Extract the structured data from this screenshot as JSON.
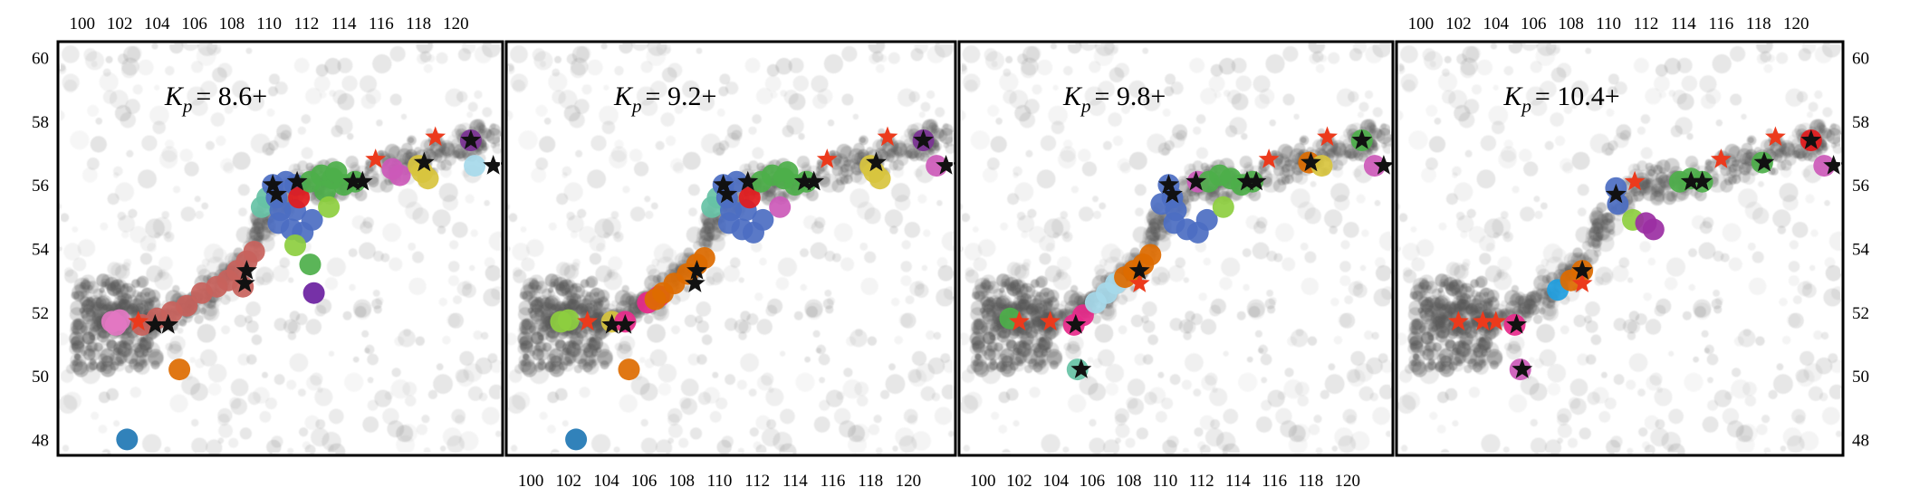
{
  "chart_data": {
    "type": "scatter",
    "x_ticks": [
      100,
      102,
      104,
      106,
      108,
      110,
      112,
      114,
      116,
      118,
      120
    ],
    "y_ticks": [
      48,
      50,
      52,
      54,
      56,
      58,
      60
    ],
    "xlim": [
      98.7,
      122.5
    ],
    "ylim": [
      47.5,
      60.5
    ],
    "panels": [
      {
        "label_symbol": "K",
        "label_sub": "p",
        "label_value": "= 8.6+",
        "clusters": [
          {
            "color": "#e377c2",
            "points": [
              [
                101.6,
                51.7
              ],
              [
                102.0,
                51.75
              ],
              [
                101.8,
                51.6
              ]
            ]
          },
          {
            "color": "#c8625c",
            "points": [
              [
                103.2,
                51.6
              ],
              [
                104.0,
                51.8
              ],
              [
                104.8,
                52.0
              ],
              [
                105.6,
                52.2
              ],
              [
                106.4,
                52.6
              ],
              [
                107.2,
                52.8
              ],
              [
                107.8,
                53.0
              ],
              [
                108.3,
                53.3
              ],
              [
                108.8,
                53.6
              ],
              [
                109.2,
                53.9
              ],
              [
                108.6,
                52.8
              ]
            ]
          },
          {
            "color": "#dd6b00",
            "points": [
              [
                105.2,
                50.2
              ]
            ]
          },
          {
            "color": "#1f77b4",
            "points": [
              [
                102.4,
                48.0
              ]
            ]
          },
          {
            "color": "#66c2a5",
            "points": [
              [
                109.6,
                55.3
              ],
              [
                109.9,
                55.6
              ]
            ]
          },
          {
            "color": "#4c6ec2",
            "points": [
              [
                110.2,
                56.0
              ],
              [
                110.4,
                55.6
              ],
              [
                110.6,
                55.2
              ],
              [
                110.5,
                54.8
              ],
              [
                111.2,
                54.6
              ],
              [
                111.8,
                54.5
              ],
              [
                112.3,
                54.9
              ],
              [
                111.4,
                55.2
              ],
              [
                110.9,
                56.1
              ],
              [
                111.4,
                56.0
              ]
            ]
          },
          {
            "color": "#e31a1c",
            "points": [
              [
                111.6,
                55.6
              ]
            ]
          },
          {
            "color": "#4daf4a",
            "points": [
              [
                112.2,
                56.1
              ],
              [
                112.8,
                56.3
              ],
              [
                113.4,
                56.2
              ],
              [
                114.0,
                56.0
              ],
              [
                114.6,
                56.1
              ],
              [
                113.0,
                55.8
              ],
              [
                113.6,
                56.4
              ],
              [
                112.2,
                53.5
              ]
            ]
          },
          {
            "color": "#8dce3f",
            "points": [
              [
                111.4,
                54.1
              ],
              [
                113.2,
                55.3
              ]
            ]
          },
          {
            "color": "#cc59b9",
            "points": [
              [
                116.6,
                56.5
              ],
              [
                117.0,
                56.3
              ]
            ]
          },
          {
            "color": "#d8c43e",
            "points": [
              [
                118.2,
                56.4
              ],
              [
                118.5,
                56.2
              ],
              [
                118.0,
                56.6
              ]
            ]
          },
          {
            "color": "#a6d9ea",
            "points": [
              [
                121.0,
                56.6
              ]
            ]
          },
          {
            "color": "#7b3294",
            "points": [
              [
                120.8,
                57.4
              ]
            ]
          },
          {
            "color": "#6a1fa0",
            "points": [
              [
                112.4,
                52.6
              ]
            ]
          }
        ],
        "black_stars": [
          [
            103.9,
            51.6
          ],
          [
            104.6,
            51.6
          ],
          [
            108.8,
            53.3
          ],
          [
            108.7,
            52.9
          ],
          [
            110.2,
            56.0
          ],
          [
            110.4,
            55.7
          ],
          [
            111.5,
            56.1
          ],
          [
            114.5,
            56.1
          ],
          [
            115.0,
            56.1
          ],
          [
            118.3,
            56.7
          ],
          [
            120.8,
            57.4
          ],
          [
            122.0,
            56.6
          ]
        ],
        "red_stars": [
          [
            103.0,
            51.7
          ],
          [
            115.7,
            56.8
          ],
          [
            118.9,
            57.5
          ]
        ]
      },
      {
        "label_symbol": "K",
        "label_sub": "p",
        "label_value": "= 9.2+",
        "clusters": [
          {
            "color": "#8dce3f",
            "points": [
              [
                101.6,
                51.7
              ],
              [
                102.0,
                51.75
              ]
            ]
          },
          {
            "color": "#d8c43e",
            "points": [
              [
                104.3,
                51.7
              ]
            ]
          },
          {
            "color": "#e7298a",
            "points": [
              [
                105.0,
                51.7
              ],
              [
                106.2,
                52.3
              ],
              [
                106.8,
                52.5
              ]
            ]
          },
          {
            "color": "#dd6b00",
            "points": [
              [
                105.2,
                50.2
              ],
              [
                107.0,
                52.6
              ],
              [
                107.6,
                52.9
              ],
              [
                108.3,
                53.2
              ],
              [
                108.8,
                53.5
              ],
              [
                109.2,
                53.7
              ],
              [
                106.6,
                52.4
              ]
            ]
          },
          {
            "color": "#1f77b4",
            "points": [
              [
                102.4,
                48.0
              ]
            ]
          },
          {
            "color": "#66c2a5",
            "points": [
              [
                109.6,
                55.3
              ],
              [
                109.9,
                55.6
              ]
            ]
          },
          {
            "color": "#4c6ec2",
            "points": [
              [
                110.2,
                56.0
              ],
              [
                110.4,
                55.6
              ],
              [
                110.6,
                55.2
              ],
              [
                110.5,
                54.8
              ],
              [
                111.2,
                54.6
              ],
              [
                111.8,
                54.5
              ],
              [
                112.3,
                54.9
              ],
              [
                111.4,
                55.2
              ],
              [
                110.9,
                56.1
              ]
            ]
          },
          {
            "color": "#e31a1c",
            "points": [
              [
                111.6,
                55.6
              ]
            ]
          },
          {
            "color": "#4daf4a",
            "points": [
              [
                112.2,
                56.1
              ],
              [
                112.8,
                56.3
              ],
              [
                113.4,
                56.2
              ],
              [
                114.0,
                56.0
              ],
              [
                114.6,
                56.1
              ],
              [
                113.6,
                56.4
              ]
            ]
          },
          {
            "color": "#cc59b9",
            "points": [
              [
                113.2,
                55.3
              ]
            ]
          },
          {
            "color": "#d8c43e",
            "points": [
              [
                118.2,
                56.4
              ],
              [
                118.5,
                56.2
              ],
              [
                118.0,
                56.6
              ]
            ]
          },
          {
            "color": "#cc59b9",
            "points": [
              [
                121.5,
                56.6
              ]
            ]
          },
          {
            "color": "#7b3294",
            "points": [
              [
                120.8,
                57.4
              ]
            ]
          }
        ],
        "black_stars": [
          [
            104.3,
            51.6
          ],
          [
            105.0,
            51.6
          ],
          [
            108.8,
            53.3
          ],
          [
            108.7,
            52.9
          ],
          [
            110.2,
            56.0
          ],
          [
            110.4,
            55.7
          ],
          [
            111.5,
            56.1
          ],
          [
            114.5,
            56.1
          ],
          [
            115.0,
            56.1
          ],
          [
            118.3,
            56.7
          ],
          [
            120.8,
            57.4
          ],
          [
            122.0,
            56.6
          ]
        ],
        "red_stars": [
          [
            103.0,
            51.7
          ],
          [
            115.7,
            56.8
          ],
          [
            118.9,
            57.5
          ]
        ]
      },
      {
        "label_symbol": "K",
        "label_sub": "p",
        "label_value": "= 9.8+",
        "clusters": [
          {
            "color": "#4daf4a",
            "points": [
              [
                101.5,
                51.8
              ]
            ]
          },
          {
            "color": "#e7298a",
            "points": [
              [
                105.0,
                51.6
              ],
              [
                105.5,
                51.9
              ]
            ]
          },
          {
            "color": "#a6d9ea",
            "points": [
              [
                106.2,
                52.3
              ],
              [
                106.8,
                52.6
              ],
              [
                107.3,
                52.9
              ]
            ]
          },
          {
            "color": "#dd6b00",
            "points": [
              [
                107.8,
                53.1
              ],
              [
                108.3,
                53.3
              ],
              [
                108.8,
                53.5
              ],
              [
                109.2,
                53.8
              ]
            ]
          },
          {
            "color": "#66c2a5",
            "points": [
              [
                105.2,
                50.2
              ]
            ]
          },
          {
            "color": "#4c6ec2",
            "points": [
              [
                110.2,
                56.0
              ],
              [
                110.4,
                55.6
              ],
              [
                110.6,
                55.2
              ],
              [
                110.5,
                54.8
              ],
              [
                111.2,
                54.6
              ],
              [
                111.8,
                54.5
              ],
              [
                112.3,
                54.9
              ],
              [
                109.8,
                55.4
              ]
            ]
          },
          {
            "color": "#cc59b9",
            "points": [
              [
                111.8,
                56.1
              ]
            ]
          },
          {
            "color": "#4daf4a",
            "points": [
              [
                112.4,
                56.1
              ],
              [
                113.0,
                56.3
              ],
              [
                113.6,
                56.2
              ],
              [
                114.2,
                56.0
              ],
              [
                114.8,
                56.1
              ]
            ]
          },
          {
            "color": "#8dce3f",
            "points": [
              [
                113.2,
                55.3
              ]
            ]
          },
          {
            "color": "#dd6b00",
            "points": [
              [
                117.9,
                56.7
              ]
            ]
          },
          {
            "color": "#d8c43e",
            "points": [
              [
                118.6,
                56.6
              ]
            ]
          },
          {
            "color": "#4daf4a",
            "points": [
              [
                120.8,
                57.4
              ]
            ]
          },
          {
            "color": "#cc59b9",
            "points": [
              [
                121.5,
                56.6
              ]
            ]
          }
        ],
        "black_stars": [
          [
            105.1,
            51.6
          ],
          [
            108.6,
            53.3
          ],
          [
            110.2,
            56.0
          ],
          [
            110.4,
            55.7
          ],
          [
            111.7,
            56.1
          ],
          [
            114.5,
            56.1
          ],
          [
            115.0,
            56.1
          ],
          [
            118.0,
            56.7
          ],
          [
            105.4,
            50.2
          ],
          [
            120.8,
            57.4
          ],
          [
            122.0,
            56.6
          ]
        ],
        "red_stars": [
          [
            102.0,
            51.7
          ],
          [
            103.7,
            51.7
          ],
          [
            108.6,
            52.9
          ],
          [
            115.7,
            56.8
          ],
          [
            118.9,
            57.5
          ]
        ]
      },
      {
        "label_symbol": "K",
        "label_sub": "p",
        "label_value": "= 10.4+",
        "clusters": [
          {
            "color": "#e7298a",
            "points": [
              [
                105.0,
                51.6
              ]
            ]
          },
          {
            "color": "#1f9ee0",
            "points": [
              [
                107.3,
                52.7
              ]
            ]
          },
          {
            "color": "#dd6b00",
            "points": [
              [
                108.0,
                53.0
              ],
              [
                108.6,
                53.3
              ]
            ]
          },
          {
            "color": "#cc59b9",
            "points": [
              [
                105.3,
                50.2
              ]
            ]
          },
          {
            "color": "#4c6ec2",
            "points": [
              [
                110.4,
                55.9
              ],
              [
                110.5,
                55.4
              ]
            ]
          },
          {
            "color": "#8dce3f",
            "points": [
              [
                111.3,
                54.9
              ]
            ]
          },
          {
            "color": "#9b2fa3",
            "points": [
              [
                112.0,
                54.8
              ],
              [
                112.4,
                54.6
              ]
            ]
          },
          {
            "color": "#4daf4a",
            "points": [
              [
                113.8,
                56.1
              ],
              [
                114.4,
                56.2
              ],
              [
                115.0,
                56.1
              ]
            ]
          },
          {
            "color": "#4daf4a",
            "points": [
              [
                118.2,
                56.7
              ]
            ]
          },
          {
            "color": "#e31a1c",
            "points": [
              [
                120.8,
                57.4
              ]
            ]
          },
          {
            "color": "#cc59b9",
            "points": [
              [
                121.5,
                56.6
              ]
            ]
          }
        ],
        "black_stars": [
          [
            105.1,
            51.6
          ],
          [
            108.6,
            53.3
          ],
          [
            110.4,
            55.7
          ],
          [
            114.4,
            56.1
          ],
          [
            115.0,
            56.1
          ],
          [
            118.3,
            56.7
          ],
          [
            105.4,
            50.2
          ],
          [
            120.8,
            57.4
          ],
          [
            122.0,
            56.6
          ]
        ],
        "red_stars": [
          [
            102.0,
            51.7
          ],
          [
            103.3,
            51.7
          ],
          [
            104.0,
            51.7
          ],
          [
            108.6,
            52.9
          ],
          [
            111.4,
            56.1
          ],
          [
            116.0,
            56.8
          ],
          [
            118.9,
            57.5
          ]
        ]
      }
    ]
  }
}
